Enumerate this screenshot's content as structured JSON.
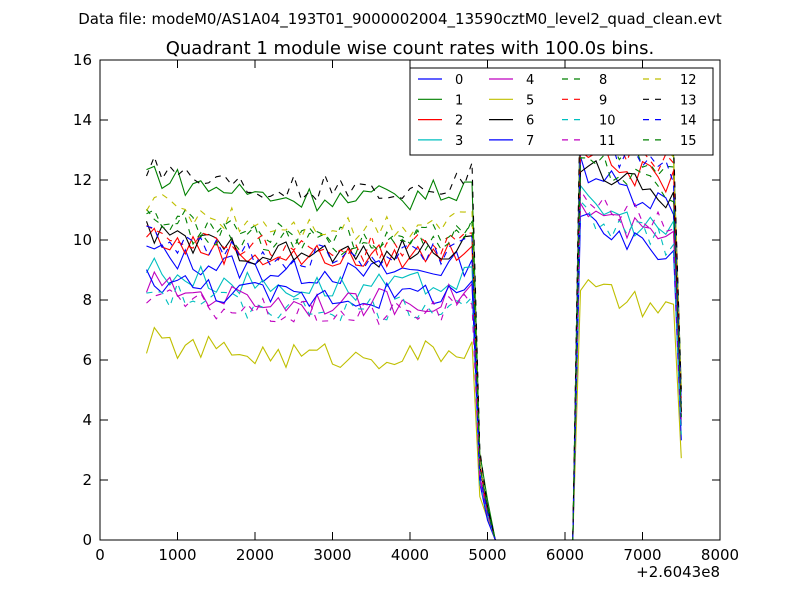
{
  "figure": {
    "suptitle": "Data file: modeM0/AS1A04_193T01_9000002004_13590cztM0_level2_quad_clean.evt"
  },
  "chart_data": {
    "type": "line",
    "title": "Quadrant 1 module wise count rates with 100.0s bins.",
    "xlabel": "",
    "ylabel": "",
    "xlim": [
      0,
      8000
    ],
    "ylim": [
      0,
      16
    ],
    "x_offset_label": "+2.6043e8",
    "xticks": [
      0,
      1000,
      2000,
      3000,
      4000,
      5000,
      6000,
      7000,
      8000
    ],
    "xtick_labels": [
      "0",
      "1000",
      "2000",
      "3000",
      "4000",
      "5000",
      "6000",
      "7000",
      "8000"
    ],
    "yticks": [
      0,
      2,
      4,
      6,
      8,
      10,
      12,
      14,
      16
    ],
    "ytick_labels": [
      "0",
      "2",
      "4",
      "6",
      "8",
      "10",
      "12",
      "14",
      "16"
    ],
    "grid": false,
    "legend_position": "top-right",
    "legend_columns": 4,
    "x": [
      600,
      700,
      800,
      900,
      1000,
      1100,
      1200,
      1300,
      1400,
      1500,
      1600,
      1700,
      1800,
      1900,
      2000,
      2100,
      2200,
      2300,
      2400,
      2500,
      2600,
      2700,
      2800,
      2900,
      3000,
      3100,
      3200,
      3300,
      3400,
      3500,
      3600,
      3700,
      3800,
      3900,
      4000,
      4100,
      4200,
      4300,
      4400,
      4500,
      4600,
      4700,
      4800,
      4900,
      5000,
      5100,
      5200,
      5300,
      5400,
      5500,
      5600,
      5700,
      5800,
      5900,
      6000,
      6100,
      6200,
      6300,
      6400,
      6500,
      6600,
      6700,
      6800,
      6900,
      7000,
      7100,
      7200,
      7300,
      7400,
      7500
    ],
    "active_segments": [
      {
        "i0": 0,
        "i1": 41,
        "base": [
          0.44,
          0.47,
          0.36,
          0.28,
          0.28,
          0.24,
          0.18,
          0.18,
          0.16,
          0.12,
          0.1,
          0.1,
          0.07,
          0.03,
          0.02,
          0.0,
          -0.02,
          -0.02,
          -0.05,
          -0.05,
          -0.06,
          -0.07,
          -0.05,
          -0.03,
          -0.02,
          -0.06,
          -0.1,
          -0.2,
          -0.08,
          -0.04,
          -0.05,
          -0.04,
          -0.05,
          -0.03,
          -0.04,
          -0.01,
          0.02,
          0.04,
          0.06,
          0.09,
          0.14,
          0.18
        ]
      },
      {
        "i0": 56,
        "i1": 69,
        "base": [
          1.0,
          0.95,
          0.9,
          0.85,
          0.8,
          0.74,
          0.7,
          0.66,
          0.63,
          0.6,
          0.58,
          0.55,
          0.52,
          0.5
        ]
      }
    ],
    "transitions": [
      {
        "index": 42,
        "factor": 1.05
      },
      {
        "index": 43,
        "factor": 0.25
      },
      {
        "index": 44,
        "factor": 0.1
      },
      {
        "index": 45,
        "factor": 0.0
      },
      {
        "index": 55,
        "factor": 0.0
      },
      {
        "index": 69,
        "factor": 0.35
      }
    ],
    "series": [
      {
        "name": "0",
        "color": "#0000ff",
        "dash": "solid",
        "m1": 9.0,
        "m2": 11.8
      },
      {
        "name": "1",
        "color": "#008000",
        "dash": "solid",
        "m1": 11.5,
        "m2": 14.0
      },
      {
        "name": "2",
        "color": "#ff0000",
        "dash": "solid",
        "m1": 9.5,
        "m2": 12.5
      },
      {
        "name": "3",
        "color": "#00bfbf",
        "dash": "solid",
        "m1": 8.5,
        "m2": 10.8
      },
      {
        "name": "4",
        "color": "#bf00bf",
        "dash": "solid",
        "m1": 8.0,
        "m2": 10.5
      },
      {
        "name": "5",
        "color": "#bfbf00",
        "dash": "solid",
        "m1": 6.2,
        "m2": 8.0
      },
      {
        "name": "6",
        "color": "#000000",
        "dash": "solid",
        "m1": 9.6,
        "m2": 12.0
      },
      {
        "name": "7",
        "color": "#0000ff",
        "dash": "solid",
        "m1": 8.2,
        "m2": 10.0
      },
      {
        "name": "8",
        "color": "#008000",
        "dash": "dashed",
        "m1": 10.2,
        "m2": 13.0
      },
      {
        "name": "9",
        "color": "#ff0000",
        "dash": "dashed",
        "m1": 9.8,
        "m2": 13.2
      },
      {
        "name": "10",
        "color": "#00bfbf",
        "dash": "dashed",
        "m1": 7.8,
        "m2": 10.4
      },
      {
        "name": "11",
        "color": "#bf00bf",
        "dash": "dashed",
        "m1": 7.6,
        "m2": 11.0
      },
      {
        "name": "12",
        "color": "#bfbf00",
        "dash": "dashed",
        "m1": 10.6,
        "m2": 13.6
      },
      {
        "name": "13",
        "color": "#000000",
        "dash": "dashed",
        "m1": 11.8,
        "m2": 14.2
      },
      {
        "name": "14",
        "color": "#0000ff",
        "dash": "dashed",
        "m1": 9.5,
        "m2": 12.8
      },
      {
        "name": "15",
        "color": "#008000",
        "dash": "dashed",
        "m1": 10.0,
        "m2": 12.2
      }
    ]
  }
}
